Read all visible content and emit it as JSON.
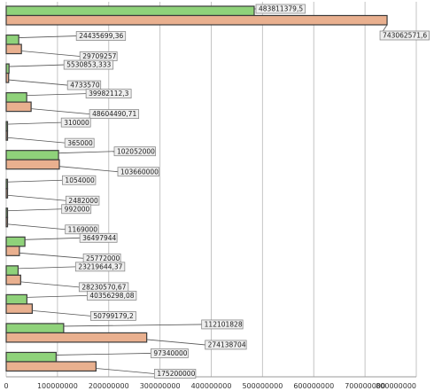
{
  "chart_data": {
    "type": "bar",
    "orientation": "horizontal",
    "grid": true,
    "legend": "none",
    "xlim": [
      0,
      800000000
    ],
    "x_ticks": [
      "0",
      "100000000",
      "200000000",
      "300000000",
      "400000000",
      "500000000",
      "600000000",
      "700000000",
      "800000000"
    ],
    "colors": {
      "series_a": "#8fd27a",
      "series_b": "#e9b08f"
    },
    "series": [
      {
        "values": [
          483811379.5,
          24435699.36,
          5530853.333,
          39982112.3,
          310000,
          102052000,
          1054000,
          992000,
          36497944,
          23219644.37,
          40356298.08,
          112101828,
          97340000
        ]
      },
      {
        "values": [
          743062571.6,
          29709257,
          4733570,
          48604490.71,
          365000,
          103660000,
          2482000,
          1169000,
          25772000,
          28230570.67,
          50799179.2,
          274138704,
          175200000
        ]
      }
    ],
    "labels_a": [
      "483811379,5",
      "24435699,36",
      "5530853,333",
      "39982112,3",
      "310000",
      "102052000",
      "1054000",
      "992000",
      "36497944",
      "23219644,37",
      "40356298,08",
      "112101828",
      "97340000"
    ],
    "labels_b": [
      "743062571,6",
      "29709257",
      "4733570",
      "48604490,71",
      "365000",
      "103660000",
      "2482000",
      "1169000",
      "25772000",
      "28230570,67",
      "50799179,2",
      "274138704",
      "175200000"
    ]
  }
}
